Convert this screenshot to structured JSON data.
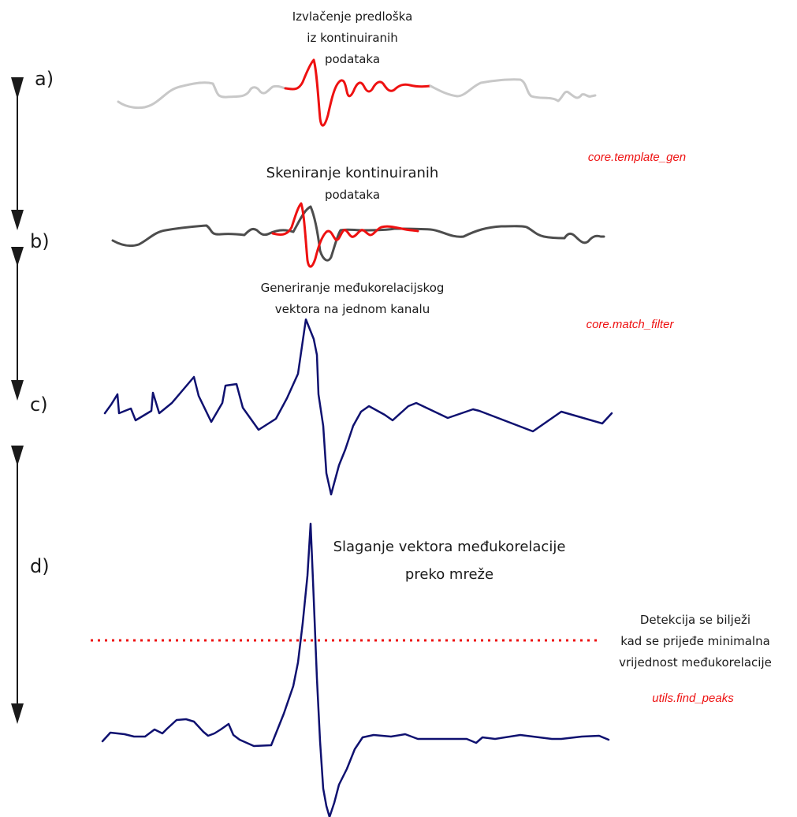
{
  "colors": {
    "highlight": "#ee1111",
    "continuous_light": "#c8c8c8",
    "continuous_dark": "#4d4d4d",
    "correlation": "#0f1170",
    "text": "#1a1a1a",
    "threshold": "#ee1111"
  },
  "steps": [
    {
      "id": "a",
      "label": "a)",
      "caption": [
        "Izvlačenje predloška",
        "iz kontinuiranih",
        "podataka"
      ],
      "function": "core.template_gen"
    },
    {
      "id": "b",
      "label": "b)",
      "caption": [
        "Skeniranje kontinuiranih",
        "podataka"
      ],
      "function": ""
    },
    {
      "id": "c",
      "label": "c)",
      "caption": [
        "Generiranje međukorelacijskog",
        "vektora na jednom kanalu"
      ],
      "function": "core.match_filter"
    },
    {
      "id": "d",
      "label": "d)",
      "caption": [
        "Slaganje vektora međukorelacije",
        "preko mreže"
      ],
      "function": ""
    }
  ],
  "detection": {
    "caption": [
      "Detekcija se bilježi",
      "kad se prijeđe minimalna",
      "vrijednost međukorelacije"
    ],
    "function": "utils.find_peaks"
  }
}
